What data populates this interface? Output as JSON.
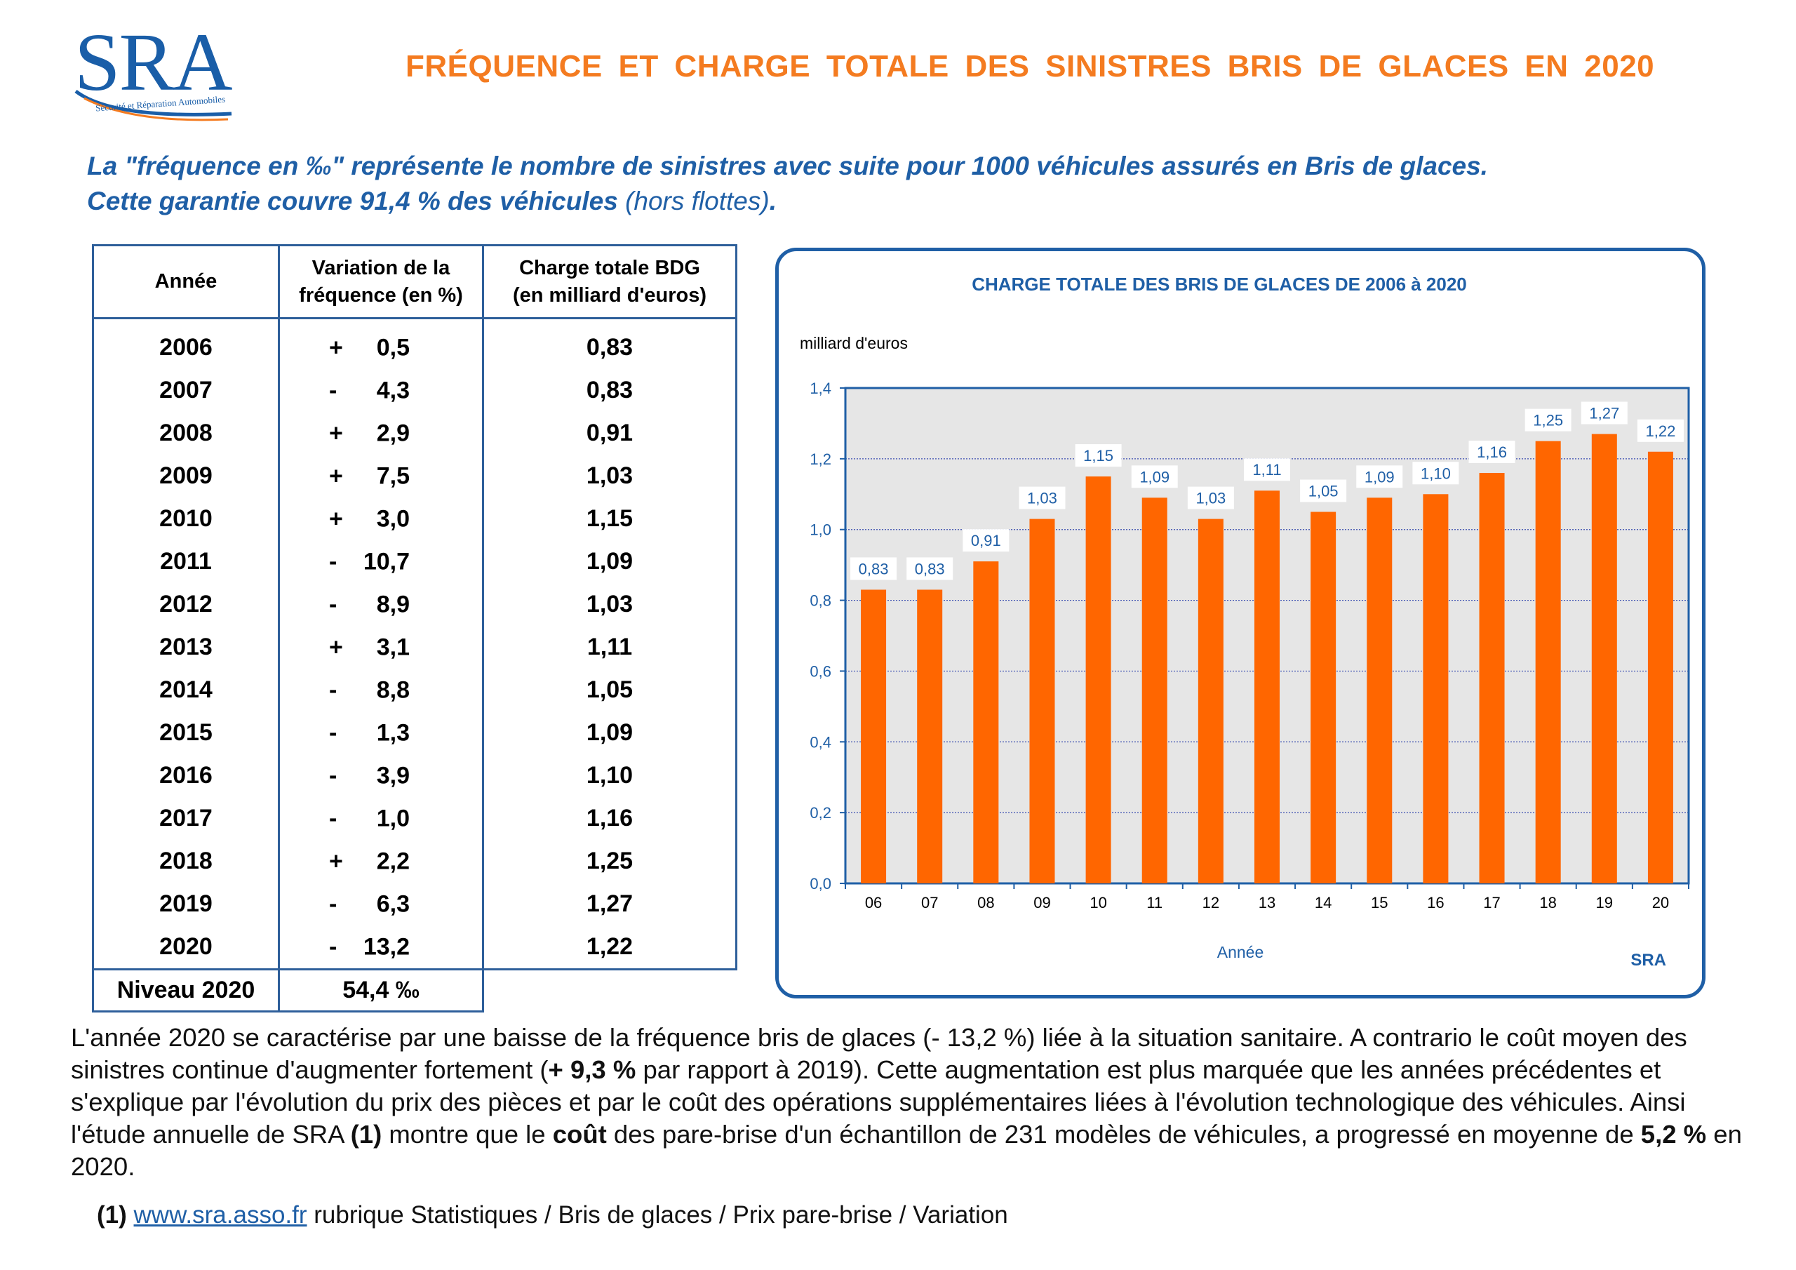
{
  "logo": {
    "text": "SRA",
    "subtitle": "Sécurité et Réparation Automobiles"
  },
  "title": "FRÉQUENCE  ET  CHARGE TOTALE  DES  SINISTRES  BRIS  DE  GLACES  EN  2020",
  "intro": {
    "line1": "La \"fréquence en ‰\" représente le nombre de sinistres avec suite pour 1000 véhicules assurés en Bris de glaces.",
    "line2_bold": "Cette garantie couvre 91,4 % des véhicules ",
    "line2_thin": "(hors flottes)",
    "line2_end": "."
  },
  "table": {
    "headers": {
      "year": "Année",
      "variation": "Variation de la fréquence (en %)",
      "charge": "Charge totale BDG (en milliard d'euros)"
    },
    "header_lines": {
      "variation_1": "Variation de la",
      "variation_2": "fréquence (en %)",
      "charge_1": "Charge totale BDG",
      "charge_2": "(en milliard d'euros)"
    },
    "rows": [
      {
        "year": "2006",
        "sign": "+",
        "variation": "0,5",
        "charge": "0,83"
      },
      {
        "year": "2007",
        "sign": "-",
        "variation": "4,3",
        "charge": "0,83"
      },
      {
        "year": "2008",
        "sign": "+",
        "variation": "2,9",
        "charge": "0,91"
      },
      {
        "year": "2009",
        "sign": "+",
        "variation": "7,5",
        "charge": "1,03"
      },
      {
        "year": "2010",
        "sign": "+",
        "variation": "3,0",
        "charge": "1,15"
      },
      {
        "year": "2011",
        "sign": "-",
        "variation": "10,7",
        "charge": "1,09"
      },
      {
        "year": "2012",
        "sign": "-",
        "variation": "8,9",
        "charge": "1,03"
      },
      {
        "year": "2013",
        "sign": "+",
        "variation": "3,1",
        "charge": "1,11"
      },
      {
        "year": "2014",
        "sign": "-",
        "variation": "8,8",
        "charge": "1,05"
      },
      {
        "year": "2015",
        "sign": "-",
        "variation": "1,3",
        "charge": "1,09"
      },
      {
        "year": "2016",
        "sign": "-",
        "variation": "3,9",
        "charge": "1,10"
      },
      {
        "year": "2017",
        "sign": "-",
        "variation": "1,0",
        "charge": "1,16"
      },
      {
        "year": "2018",
        "sign": "+",
        "variation": "2,2",
        "charge": "1,25"
      },
      {
        "year": "2019",
        "sign": "-",
        "variation": "6,3",
        "charge": "1,27"
      },
      {
        "year": "2020",
        "sign": "-",
        "variation": "13,2",
        "charge": "1,22"
      }
    ],
    "level": {
      "label": "Niveau 2020",
      "value": "54,4 ‰"
    }
  },
  "chart_data": {
    "type": "bar",
    "title": "CHARGE TOTALE DES BRIS DE GLACES DE 2006  à  2020",
    "ylabel": "milliard d'euros",
    "xlabel": "Année",
    "source": "SRA",
    "categories": [
      "06",
      "07",
      "08",
      "09",
      "10",
      "11",
      "12",
      "13",
      "14",
      "15",
      "16",
      "17",
      "18",
      "19",
      "20"
    ],
    "values": [
      0.83,
      0.83,
      0.91,
      1.03,
      1.15,
      1.09,
      1.03,
      1.11,
      1.05,
      1.09,
      1.1,
      1.16,
      1.25,
      1.27,
      1.22
    ],
    "data_labels": [
      "0,83",
      "0,83",
      "0,91",
      "1,03",
      "1,15",
      "1,09",
      "1,03",
      "1,11",
      "1,05",
      "1,09",
      "1,10",
      "1,16",
      "1,25",
      "1,27",
      "1,22"
    ],
    "yticks": [
      "0,0",
      "0,2",
      "0,4",
      "0,6",
      "0,8",
      "1,0",
      "1,2",
      "1,4"
    ],
    "ylim": [
      0,
      1.4
    ],
    "grid": true,
    "colors": {
      "bar": "#ff6600",
      "plot_bg": "#e6e6e6",
      "frame": "#1f5fa6",
      "text": "#1f5fa6"
    }
  },
  "paragraph": {
    "p1": "L'année 2020 se caractérise par une baisse de la fréquence bris de glaces (- 13,2 %) liée à la situation sanitaire. A contrario le coût moyen des sinistres continue d'augmenter fortement (",
    "b1": "+ 9,3 %",
    "p2": " par rapport à 2019). Cette augmentation est plus marquée que les années précédentes et s'explique par l'évolution du prix des pièces et par le coût des opérations supplémentaires liées à l'évolution technologique des véhicules. Ainsi l'étude annuelle de SRA ",
    "b2": "(1)",
    "p3": " montre que le ",
    "b3": "coût",
    "p4": " des pare-brise d'un échantillon de 231 modèles de véhicules, a progressé en moyenne de ",
    "b4": "5,2 %",
    "p5": " en 2020."
  },
  "footnote": {
    "marker": "(1)",
    "link": "www.sra.asso.fr",
    "text": " rubrique Statistiques / Bris de glaces / Prix pare-brise / Variation"
  }
}
